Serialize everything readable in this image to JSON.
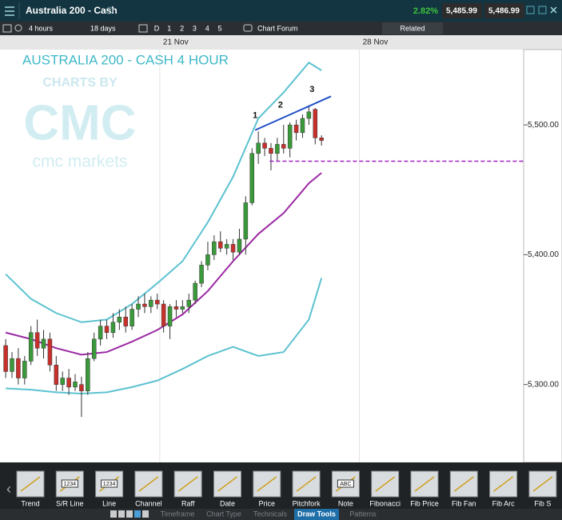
{
  "header": {
    "title": "Australia 200 - Cash",
    "change": "2.82%",
    "sell": "5,485.99",
    "buy": "5,486.99"
  },
  "toolbar": {
    "interval": "4 hours",
    "range": "18 days",
    "levels": [
      "D",
      "1",
      "2",
      "3",
      "4",
      "5"
    ],
    "forum": "Chart Forum",
    "related": "Related"
  },
  "watermark": {
    "charts_by": "CHARTS BY",
    "logo": "CMC",
    "brand": "cmc markets"
  },
  "chart_data": {
    "type": "candlestick",
    "title": "AUSTRALIA 200 - CASH 4 HOUR",
    "up_color": "#3a9a3a",
    "down_color": "#c8302c",
    "open": [
      5330,
      5310,
      5320,
      5305,
      5318,
      5340,
      5328,
      5335,
      5315,
      5300,
      5305,
      5298,
      5300,
      5295,
      5320,
      5335,
      5345,
      5340,
      5348,
      5352,
      5345,
      5358,
      5362,
      5360,
      5365,
      5362,
      5345,
      5360,
      5358,
      5360,
      5365,
      5378,
      5392,
      5400,
      5410,
      5405,
      5408,
      5402,
      5412,
      5440,
      5478,
      5486,
      5482,
      5478,
      5485,
      5482,
      5500,
      5494,
      5505,
      5512,
      5490
    ],
    "high": [
      5335,
      5325,
      5328,
      5322,
      5345,
      5350,
      5342,
      5340,
      5322,
      5310,
      5312,
      5308,
      5306,
      5325,
      5340,
      5350,
      5350,
      5355,
      5358,
      5360,
      5362,
      5368,
      5370,
      5368,
      5370,
      5365,
      5362,
      5365,
      5365,
      5370,
      5380,
      5395,
      5410,
      5415,
      5418,
      5412,
      5412,
      5420,
      5445,
      5482,
      5495,
      5490,
      5486,
      5490,
      5500,
      5502,
      5504,
      5508,
      5514,
      5513,
      5492
    ],
    "low": [
      5305,
      5305,
      5300,
      5300,
      5315,
      5322,
      5320,
      5310,
      5295,
      5295,
      5292,
      5295,
      5275,
      5292,
      5318,
      5330,
      5335,
      5336,
      5342,
      5340,
      5342,
      5352,
      5355,
      5355,
      5358,
      5340,
      5335,
      5352,
      5355,
      5355,
      5362,
      5375,
      5388,
      5396,
      5402,
      5400,
      5396,
      5400,
      5400,
      5438,
      5470,
      5476,
      5465,
      5472,
      5478,
      5475,
      5488,
      5490,
      5500,
      5485,
      5484
    ],
    "close": [
      5310,
      5320,
      5305,
      5318,
      5340,
      5328,
      5335,
      5315,
      5300,
      5305,
      5298,
      5302,
      5295,
      5320,
      5335,
      5345,
      5340,
      5348,
      5352,
      5345,
      5358,
      5362,
      5360,
      5365,
      5362,
      5345,
      5360,
      5358,
      5360,
      5365,
      5378,
      5392,
      5400,
      5410,
      5405,
      5408,
      5402,
      5412,
      5440,
      5478,
      5486,
      5482,
      5478,
      5485,
      5482,
      5500,
      5494,
      5505,
      5510,
      5490,
      5488
    ],
    "bands": [
      {
        "color": "#5cc2d0",
        "x": [
          0,
          4,
          8,
          12,
          16,
          20,
          24,
          28,
          32,
          36,
          40,
          44,
          48,
          50
        ],
        "values": [
          5385,
          5366,
          5355,
          5348,
          5350,
          5362,
          5378,
          5395,
          5425,
          5460,
          5505,
          5525,
          5548,
          5542
        ]
      },
      {
        "color": "#9b2aa3",
        "x": [
          0,
          4,
          8,
          12,
          16,
          20,
          24,
          28,
          32,
          36,
          40,
          44,
          48,
          50
        ],
        "values": [
          5340,
          5335,
          5328,
          5323,
          5325,
          5333,
          5342,
          5354,
          5372,
          5395,
          5416,
          5432,
          5455,
          5463
        ]
      },
      {
        "color": "#5cc2d0",
        "x": [
          0,
          4,
          8,
          12,
          16,
          20,
          24,
          28,
          32,
          36,
          40,
          44,
          48,
          50
        ],
        "values": [
          5297,
          5296,
          5294,
          5293,
          5294,
          5298,
          5303,
          5312,
          5322,
          5329,
          5322,
          5325,
          5350,
          5382
        ]
      }
    ],
    "annotations": [
      {
        "text": "1",
        "x": 39.5,
        "y": 5501
      },
      {
        "text": "2",
        "x": 43.5,
        "y": 5509
      },
      {
        "text": "3",
        "x": 48.5,
        "y": 5521
      }
    ],
    "trendline": {
      "color": "#1f4fc8",
      "x": [
        39.5,
        51.5
      ],
      "y": [
        5496,
        5522
      ]
    },
    "support": {
      "color": "#a020c0",
      "x": [
        41.8,
        82
      ],
      "value": 5472
    },
    "xlim": [
      -0.9,
      82
    ],
    "ylim": [
      5240,
      5558
    ],
    "xticks": [
      {
        "value": 24.4,
        "label": "21 Nov"
      },
      {
        "value": 56,
        "label": "28 Nov"
      }
    ],
    "yticks": [
      {
        "value": 5300,
        "label": "5,300.00"
      },
      {
        "value": 5400,
        "label": "5,400.00"
      },
      {
        "value": 5500,
        "label": "5,500.00"
      }
    ]
  },
  "tools": [
    {
      "label": "Trend"
    },
    {
      "label": "S/R Line",
      "icon_text": "1234"
    },
    {
      "label": "Line",
      "icon_text": "1234"
    },
    {
      "label": "Channel"
    },
    {
      "label": "Raff"
    },
    {
      "label": "Date"
    },
    {
      "label": "Price"
    },
    {
      "label": "Pitchfork"
    },
    {
      "label": "Note",
      "icon_text": "ABC"
    },
    {
      "label": "Fibonacci"
    },
    {
      "label": "Fib Price"
    },
    {
      "label": "Fib Fan"
    },
    {
      "label": "Fib Arc"
    },
    {
      "label": "Fib S"
    }
  ],
  "tabs": {
    "items": [
      "Timeframe",
      "Chart Type",
      "Technicals",
      "Draw Tools",
      "Patterns"
    ],
    "active": "Draw Tools"
  }
}
